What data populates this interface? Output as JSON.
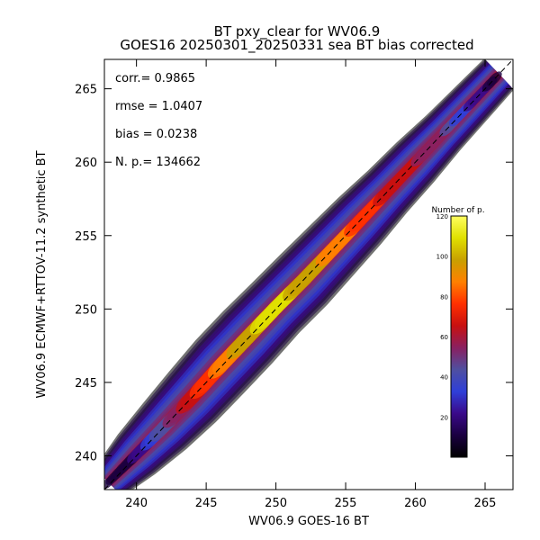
{
  "chart_data": {
    "type": "heatmap",
    "title": "BT pxy_clear for WV06.9",
    "subtitle": "GOES16 20250301_20250331 sea BT bias corrected",
    "xlabel": "WV06.9 GOES-16 BT",
    "ylabel": "WV06.9 ECMWF+RTTOV-11.2 synthetic BT",
    "xlim": [
      237.7,
      267
    ],
    "ylim": [
      237.7,
      267
    ],
    "xticks": [
      240,
      245,
      250,
      255,
      260,
      265
    ],
    "yticks": [
      240,
      245,
      250,
      255,
      260,
      265
    ],
    "stats": [
      {
        "label": "corr.=",
        "value": "0.9865"
      },
      {
        "label": "rmse =",
        "value": "1.0407"
      },
      {
        "label": "bias =",
        "value": "0.0238"
      },
      {
        "label": "N. p.=",
        "value": "134662"
      }
    ],
    "density_ridge": [
      {
        "x": 238.0,
        "y": 238.2,
        "halfwidth": 1.4,
        "peak": 8
      },
      {
        "x": 240.0,
        "y": 240.1,
        "halfwidth": 1.9,
        "peak": 18
      },
      {
        "x": 242.0,
        "y": 242.0,
        "halfwidth": 2.2,
        "peak": 45
      },
      {
        "x": 244.0,
        "y": 244.0,
        "halfwidth": 2.4,
        "peak": 65
      },
      {
        "x": 246.0,
        "y": 246.1,
        "halfwidth": 2.5,
        "peak": 85
      },
      {
        "x": 248.0,
        "y": 248.1,
        "halfwidth": 2.5,
        "peak": 100
      },
      {
        "x": 250.0,
        "y": 250.1,
        "halfwidth": 2.4,
        "peak": 110
      },
      {
        "x": 252.0,
        "y": 252.0,
        "halfwidth": 2.4,
        "peak": 100
      },
      {
        "x": 254.0,
        "y": 254.0,
        "halfwidth": 2.3,
        "peak": 90
      },
      {
        "x": 256.0,
        "y": 256.0,
        "halfwidth": 2.2,
        "peak": 78
      },
      {
        "x": 258.0,
        "y": 258.0,
        "halfwidth": 2.0,
        "peak": 68
      },
      {
        "x": 260.0,
        "y": 260.0,
        "halfwidth": 1.9,
        "peak": 60
      },
      {
        "x": 262.0,
        "y": 262.0,
        "halfwidth": 1.7,
        "peak": 50
      },
      {
        "x": 264.0,
        "y": 264.0,
        "halfwidth": 1.6,
        "peak": 25
      },
      {
        "x": 266.0,
        "y": 266.0,
        "halfwidth": 1.5,
        "peak": 8
      }
    ],
    "one_to_one_line": true,
    "colorbar": {
      "label": "Number of p.",
      "range": [
        0,
        120
      ],
      "ticks": [
        20,
        40,
        60,
        80,
        100,
        120
      ],
      "colors": [
        "#000000",
        "#1a0040",
        "#3a0a8a",
        "#2f3fd8",
        "#4f4fa0",
        "#8a2060",
        "#c81010",
        "#ff3000",
        "#ff8000",
        "#c8a000",
        "#e0e000",
        "#ffff60"
      ]
    },
    "grid": false
  }
}
